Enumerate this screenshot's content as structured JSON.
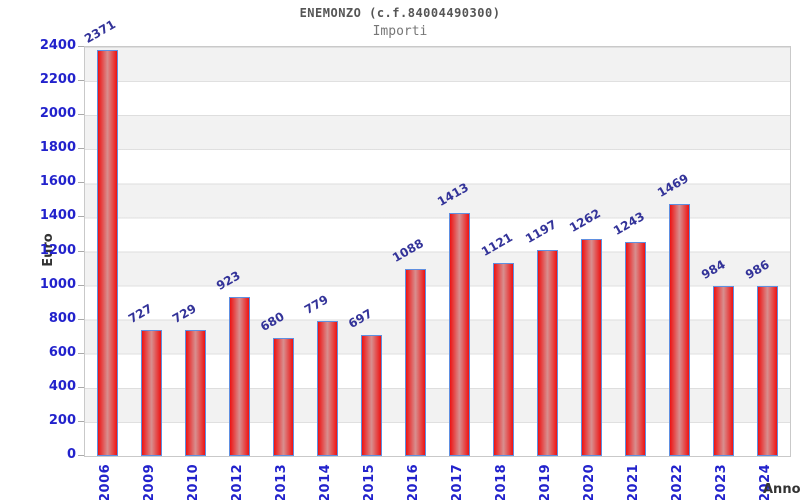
{
  "chart_data": {
    "type": "bar",
    "title": "ENEMONZO (c.f.84004490300)",
    "subtitle": "Importi",
    "ylabel": "Euro",
    "xlabel": "Anno",
    "categories": [
      "2006",
      "2009",
      "2010",
      "2012",
      "2013",
      "2014",
      "2015",
      "2016",
      "2017",
      "2018",
      "2019",
      "2020",
      "2021",
      "2022",
      "2023",
      "2024"
    ],
    "values": [
      2371,
      727,
      729,
      923,
      680,
      779,
      697,
      1088,
      1413,
      1121,
      1197,
      1262,
      1243,
      1469,
      984,
      986
    ],
    "ylim": [
      0,
      2400
    ],
    "yticks": [
      0,
      200,
      400,
      600,
      800,
      1000,
      1200,
      1400,
      1600,
      1800,
      2000,
      2200,
      2400
    ],
    "grid": "horizontal alternating gray/white bands every 200",
    "legend": "none"
  },
  "colors": {
    "bar_fill_edge": "#ee1212",
    "bar_fill_center": "#d88f8f",
    "bar_border": "#5f8fe0",
    "axis_label_blue": "#2222cc",
    "value_label_navy": "#333399",
    "title_gray": "#555555",
    "subtitle_gray": "#777777",
    "band_gray": "#f2f2f2",
    "plot_border": "#c9c9c9"
  }
}
